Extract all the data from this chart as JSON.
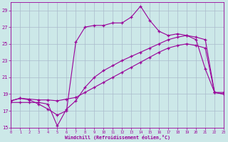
{
  "background_color": "#cce8e8",
  "grid_color": "#aabbcc",
  "line_color": "#990099",
  "xlabel": "Windchill (Refroidissement éolien,°C)",
  "xlim": [
    0,
    23
  ],
  "ylim": [
    15,
    30
  ],
  "yticks": [
    15,
    17,
    19,
    21,
    23,
    25,
    27,
    29
  ],
  "xticks": [
    0,
    1,
    2,
    3,
    4,
    5,
    6,
    7,
    8,
    9,
    10,
    11,
    12,
    13,
    14,
    15,
    16,
    17,
    18,
    19,
    20,
    21,
    22,
    23
  ],
  "curve1_x": [
    0,
    1,
    2,
    3,
    4,
    5,
    6,
    7,
    8,
    9,
    10,
    11,
    12,
    13,
    14,
    15,
    16,
    17,
    18,
    19,
    20,
    21,
    22,
    23
  ],
  "curve1_y": [
    18.2,
    18.5,
    18.4,
    18.3,
    18.3,
    18.2,
    18.4,
    18.6,
    19.2,
    19.8,
    20.4,
    21.0,
    21.6,
    22.2,
    22.8,
    23.4,
    24.0,
    24.5,
    24.8,
    25.0,
    24.8,
    24.5,
    19.2,
    19.2
  ],
  "curve2_x": [
    0,
    1,
    2,
    3,
    4,
    5,
    6,
    7,
    8,
    9,
    10,
    11,
    12,
    13,
    14,
    15,
    16,
    17,
    18,
    19,
    20,
    21,
    22,
    23
  ],
  "curve2_y": [
    18.0,
    18.0,
    18.0,
    18.0,
    17.8,
    15.2,
    17.2,
    18.2,
    19.8,
    21.0,
    21.8,
    22.4,
    23.0,
    23.5,
    24.0,
    24.5,
    25.0,
    25.5,
    25.8,
    26.0,
    25.5,
    22.0,
    19.2,
    19.0
  ],
  "curve3_x": [
    0,
    1,
    2,
    3,
    4,
    5,
    6,
    7,
    8,
    9,
    10,
    11,
    12,
    13,
    14,
    15,
    16,
    17,
    18,
    19,
    20,
    21,
    22,
    23
  ],
  "curve3_y": [
    18.2,
    18.5,
    18.3,
    17.8,
    17.2,
    16.5,
    17.0,
    25.2,
    27.0,
    27.2,
    27.2,
    27.5,
    27.5,
    28.2,
    29.5,
    27.8,
    26.5,
    26.0,
    26.2,
    26.0,
    25.8,
    25.5,
    19.2,
    19.0
  ]
}
